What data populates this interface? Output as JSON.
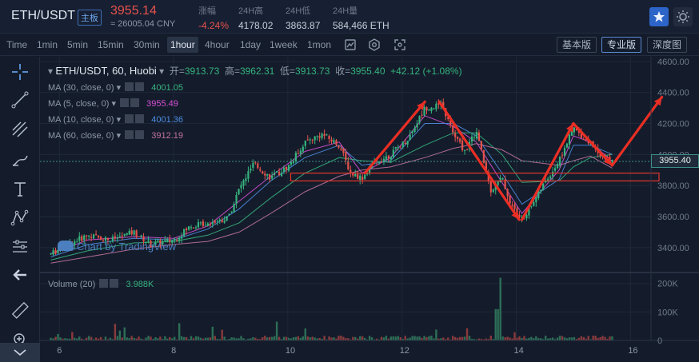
{
  "header": {
    "pair": "ETH/USDT",
    "badge": "主板",
    "price": "3955.14",
    "cny": "≈ 26005.04 CNY",
    "stats": [
      {
        "label": "涨幅",
        "value": "-4.24%"
      },
      {
        "label": "24H高",
        "value": "4178.02"
      },
      {
        "label": "24H低",
        "value": "3863.87"
      },
      {
        "label": "24H量",
        "value": "584,466 ETH"
      }
    ],
    "star_icon": "star-icon",
    "theme_icon": "sun-icon"
  },
  "toolbar": {
    "timeframes": [
      "Time",
      "1min",
      "5min",
      "15min",
      "30min",
      "1hour",
      "4hour",
      "1day",
      "1week",
      "1mon"
    ],
    "active_timeframe": "1hour",
    "views": [
      "基本版",
      "专业版",
      "深度图"
    ],
    "active_view": "专业版",
    "icons": [
      "chart-type-icon",
      "settings-icon",
      "fullscreen-icon"
    ]
  },
  "left_tools": [
    "crosshair-icon",
    "trend-line-icon",
    "fib-icon",
    "brush-icon",
    "text-icon",
    "pattern-icon",
    "measure-icon",
    "back-arrow-icon",
    "ruler-icon",
    "zoom-icon",
    "collapse-icon"
  ],
  "legend": {
    "symbol": "ETH/USDT, 60, Huobi",
    "open_label": "开=",
    "open": "3913.73",
    "high_label": "高=",
    "high": "3962.31",
    "low_label": "低=",
    "low": "3913.73",
    "close_label": "收=",
    "close": "3955.40",
    "change": "+42.12 (+1.08%)"
  },
  "ma_lines": [
    {
      "label": "MA (30, close, 0)",
      "value": "4001.05",
      "color": "#36b37e"
    },
    {
      "label": "MA (5, close, 0)",
      "value": "3955.49",
      "color": "#d64fd6"
    },
    {
      "label": "MA (10, close, 0)",
      "value": "4001.36",
      "color": "#4c8be0"
    },
    {
      "label": "MA (60, close, 0)",
      "value": "3912.19",
      "color": "#c0729e"
    }
  ],
  "volume": {
    "label": "Volume (20)",
    "value": "3.988K"
  },
  "price_tag": "3955.40",
  "watermark": "Chart by TradingView",
  "chart_data": {
    "type": "candlestick",
    "price_axis": {
      "ticks": [
        3400,
        3600,
        3800,
        4000,
        4200,
        4400,
        4600
      ],
      "range": [
        3250,
        4630
      ]
    },
    "volume_axis": {
      "ticks": [
        "0",
        "100K",
        "200K"
      ],
      "range": [
        0,
        230000
      ]
    },
    "x_ticks": [
      "6",
      "8",
      "10",
      "12",
      "14",
      "16"
    ],
    "last_price": 3955.4,
    "price_path": [
      [
        5.85,
        3360
      ],
      [
        6.2,
        3430
      ],
      [
        6.5,
        3480
      ],
      [
        6.9,
        3450
      ],
      [
        7.3,
        3500
      ],
      [
        7.6,
        3420
      ],
      [
        8.0,
        3450
      ],
      [
        8.3,
        3540
      ],
      [
        8.6,
        3560
      ],
      [
        8.95,
        3590
      ],
      [
        9.15,
        3780
      ],
      [
        9.4,
        3940
      ],
      [
        9.7,
        3850
      ],
      [
        10.0,
        3920
      ],
      [
        10.3,
        4080
      ],
      [
        10.6,
        4130
      ],
      [
        10.9,
        4060
      ],
      [
        11.1,
        3880
      ],
      [
        11.3,
        3850
      ],
      [
        11.5,
        3940
      ],
      [
        11.8,
        4000
      ],
      [
        12.1,
        4100
      ],
      [
        12.4,
        4300
      ],
      [
        12.7,
        4320
      ],
      [
        12.9,
        4130
      ],
      [
        13.1,
        4020
      ],
      [
        13.3,
        4150
      ],
      [
        13.55,
        3770
      ],
      [
        13.75,
        3850
      ],
      [
        13.9,
        3680
      ],
      [
        14.1,
        3580
      ],
      [
        14.4,
        3760
      ],
      [
        14.75,
        3960
      ],
      [
        15.0,
        4170
      ],
      [
        15.3,
        4070
      ],
      [
        15.55,
        3980
      ],
      [
        15.68,
        3955
      ]
    ],
    "ma_paths": {
      "ma5": [
        [
          5.85,
          3360
        ],
        [
          6.5,
          3450
        ],
        [
          7.3,
          3470
        ],
        [
          8.0,
          3460
        ],
        [
          8.6,
          3540
        ],
        [
          9.15,
          3700
        ],
        [
          9.7,
          3860
        ],
        [
          10.3,
          4020
        ],
        [
          10.9,
          4080
        ],
        [
          11.3,
          3880
        ],
        [
          11.8,
          3980
        ],
        [
          12.4,
          4250
        ],
        [
          12.9,
          4180
        ],
        [
          13.3,
          4080
        ],
        [
          13.75,
          3820
        ],
        [
          14.1,
          3620
        ],
        [
          14.75,
          3900
        ],
        [
          15.0,
          4120
        ],
        [
          15.3,
          4080
        ],
        [
          15.68,
          3955
        ]
      ],
      "ma10": [
        [
          5.85,
          3340
        ],
        [
          6.5,
          3420
        ],
        [
          7.3,
          3460
        ],
        [
          8.0,
          3450
        ],
        [
          8.6,
          3520
        ],
        [
          9.15,
          3650
        ],
        [
          9.7,
          3830
        ],
        [
          10.3,
          3980
        ],
        [
          10.9,
          4060
        ],
        [
          11.3,
          3930
        ],
        [
          11.8,
          3960
        ],
        [
          12.4,
          4200
        ],
        [
          12.9,
          4200
        ],
        [
          13.3,
          4120
        ],
        [
          13.75,
          3880
        ],
        [
          14.1,
          3680
        ],
        [
          14.75,
          3840
        ],
        [
          15.0,
          4060
        ],
        [
          15.3,
          4060
        ],
        [
          15.68,
          4001
        ]
      ],
      "ma30": [
        [
          5.85,
          3320
        ],
        [
          6.5,
          3380
        ],
        [
          7.3,
          3430
        ],
        [
          8.0,
          3440
        ],
        [
          8.6,
          3480
        ],
        [
          9.15,
          3560
        ],
        [
          9.7,
          3720
        ],
        [
          10.3,
          3880
        ],
        [
          10.9,
          3980
        ],
        [
          11.3,
          3960
        ],
        [
          11.8,
          3950
        ],
        [
          12.4,
          4060
        ],
        [
          12.9,
          4140
        ],
        [
          13.3,
          4140
        ],
        [
          13.75,
          4000
        ],
        [
          14.1,
          3820
        ],
        [
          14.75,
          3830
        ],
        [
          15.0,
          3920
        ],
        [
          15.3,
          3980
        ],
        [
          15.68,
          4001
        ]
      ],
      "ma60": [
        [
          5.85,
          3300
        ],
        [
          6.5,
          3340
        ],
        [
          7.3,
          3390
        ],
        [
          8.0,
          3420
        ],
        [
          8.6,
          3440
        ],
        [
          9.15,
          3500
        ],
        [
          9.7,
          3620
        ],
        [
          10.3,
          3760
        ],
        [
          10.9,
          3860
        ],
        [
          11.3,
          3900
        ],
        [
          11.8,
          3920
        ],
        [
          12.4,
          3980
        ],
        [
          12.9,
          4040
        ],
        [
          13.3,
          4070
        ],
        [
          13.75,
          4030
        ],
        [
          14.1,
          3960
        ],
        [
          14.75,
          3930
        ],
        [
          15.0,
          3960
        ],
        [
          15.3,
          3990
        ],
        [
          15.68,
          3912
        ]
      ]
    },
    "annotations": {
      "support_box": {
        "x": [
          10.05,
          16.5
        ],
        "price": [
          3830,
          3880
        ]
      },
      "arrows": [
        {
          "from": [
            11.35,
            3880
          ],
          "to": [
            12.4,
            4340
          ]
        },
        {
          "from": [
            12.65,
            4340
          ],
          "to": [
            14.05,
            3580
          ]
        },
        {
          "from": [
            14.1,
            3580
          ],
          "to": [
            15.0,
            4200
          ]
        },
        {
          "from": [
            15.0,
            4200
          ],
          "to": [
            15.68,
            3930
          ]
        },
        {
          "from": [
            15.68,
            3930
          ],
          "to": [
            16.55,
            4370
          ]
        }
      ]
    },
    "volume_bars_approx": {
      "baseline": 5000,
      "spike_at_13_7": 220000
    }
  }
}
